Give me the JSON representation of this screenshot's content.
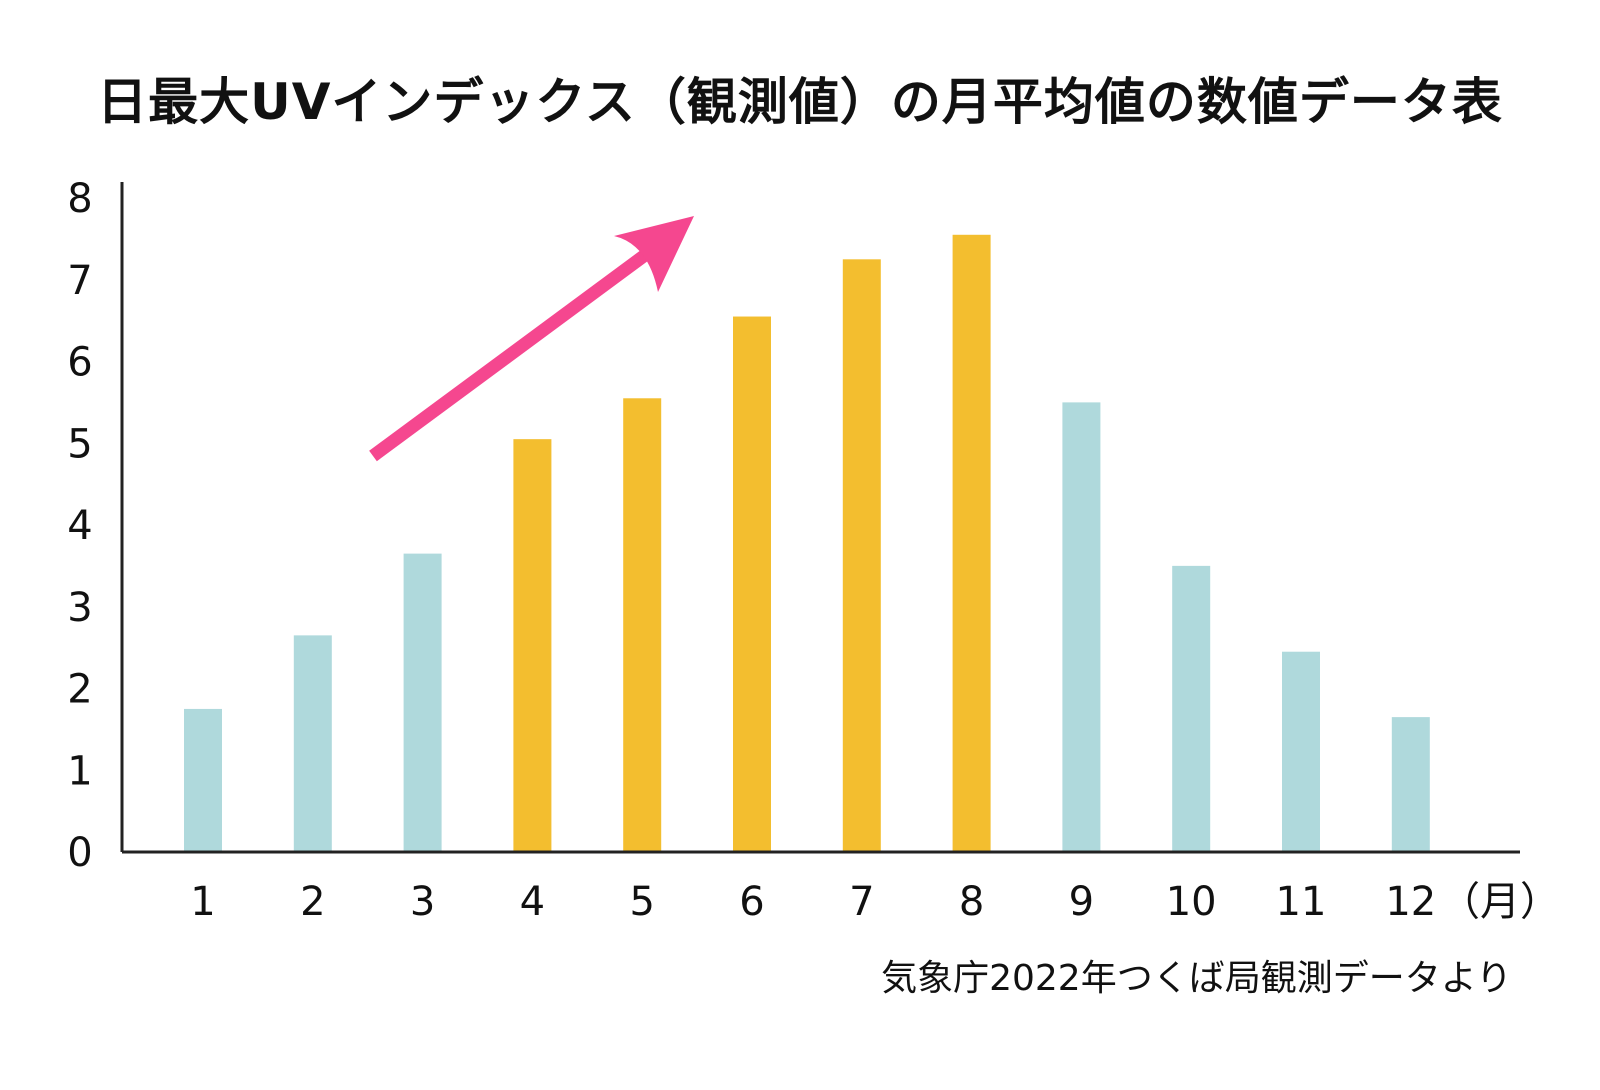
{
  "title": "日最大UVインデックス（観測値）の月平均値の数値データ表",
  "source_note": "気象庁2022年つくば局観測データより",
  "x_unit": "（月）",
  "colors": {
    "highlight": "#F3BE2F",
    "normal": "#AFD9DC",
    "arrow": "#F5478F",
    "axis": "#222222"
  },
  "chart_data": {
    "type": "bar",
    "title": "日最大UVインデックス（観測値）の月平均値の数値データ表",
    "xlabel": "（月）",
    "ylabel": "",
    "categories": [
      "1",
      "2",
      "3",
      "4",
      "5",
      "6",
      "7",
      "8",
      "9",
      "10",
      "11",
      "12"
    ],
    "values": [
      1.75,
      2.65,
      3.65,
      5.05,
      5.55,
      6.55,
      7.25,
      7.55,
      5.5,
      3.5,
      2.45,
      1.65
    ],
    "highlighted": [
      false,
      false,
      false,
      true,
      true,
      true,
      true,
      true,
      false,
      false,
      false,
      false
    ],
    "ylim": [
      0,
      8
    ],
    "yticks": [
      "0",
      "1",
      "2",
      "3",
      "4",
      "5",
      "6",
      "7",
      "8"
    ],
    "grid": false,
    "legend": "none",
    "annotation": "upward-trend-arrow"
  }
}
